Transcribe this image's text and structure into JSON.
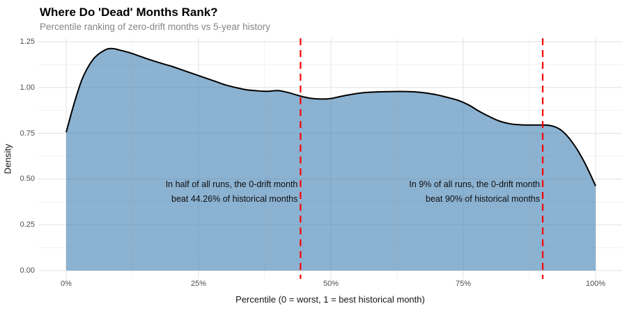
{
  "header": {
    "title": "Where Do 'Dead' Months Rank?",
    "subtitle": "Percentile ranking of zero-drift months vs 5-year history"
  },
  "chart_data": {
    "type": "area",
    "title": "Where Do 'Dead' Months Rank?",
    "subtitle": "Percentile ranking of zero-drift months vs 5-year history",
    "xlabel": "Percentile (0 = worst, 1 = best historical month)",
    "ylabel": "Density",
    "xlim": [
      0,
      100
    ],
    "ylim": [
      0,
      1.25
    ],
    "grid": "major+minor",
    "legend_position": "none",
    "x_ticks": [
      {
        "value": 0,
        "label": "0%"
      },
      {
        "value": 25,
        "label": "25%"
      },
      {
        "value": 50,
        "label": "50%"
      },
      {
        "value": 75,
        "label": "75%"
      },
      {
        "value": 100,
        "label": "100%"
      }
    ],
    "y_ticks": [
      {
        "value": 0.0,
        "label": "0.00"
      },
      {
        "value": 0.25,
        "label": "0.25"
      },
      {
        "value": 0.5,
        "label": "0.50"
      },
      {
        "value": 0.75,
        "label": "0.75"
      },
      {
        "value": 1.0,
        "label": "1.00"
      },
      {
        "value": 1.25,
        "label": "1.25"
      }
    ],
    "x_minor_ticks": [
      12.5,
      37.5,
      62.5,
      87.5
    ],
    "y_minor_ticks": [
      0.125,
      0.375,
      0.625,
      0.875,
      1.125
    ],
    "series": {
      "name": "density",
      "x": [
        0,
        1,
        2,
        3,
        4,
        5,
        6,
        7,
        8,
        9,
        10,
        12,
        14,
        16,
        18,
        20,
        22,
        24,
        26,
        28,
        30,
        32,
        34,
        36,
        38,
        40,
        42,
        44,
        46,
        48,
        50,
        52,
        54,
        56,
        58,
        60,
        62,
        64,
        66,
        68,
        70,
        72,
        74,
        76,
        78,
        80,
        82,
        84,
        86,
        88,
        90,
        91,
        92,
        93,
        94,
        95,
        96,
        97,
        98,
        99,
        100
      ],
      "density": [
        0.755,
        0.862,
        0.96,
        1.045,
        1.105,
        1.15,
        1.18,
        1.2,
        1.212,
        1.212,
        1.205,
        1.19,
        1.17,
        1.15,
        1.132,
        1.115,
        1.095,
        1.075,
        1.055,
        1.035,
        1.015,
        1.0,
        0.988,
        0.982,
        0.979,
        0.983,
        0.972,
        0.955,
        0.942,
        0.937,
        0.94,
        0.952,
        0.963,
        0.971,
        0.975,
        0.977,
        0.978,
        0.978,
        0.976,
        0.97,
        0.96,
        0.946,
        0.93,
        0.905,
        0.87,
        0.84,
        0.815,
        0.801,
        0.796,
        0.795,
        0.795,
        0.794,
        0.788,
        0.776,
        0.754,
        0.723,
        0.684,
        0.638,
        0.585,
        0.525,
        0.462
      ]
    },
    "vlines": [
      {
        "x": 44.26,
        "style": "dashed"
      },
      {
        "x": 90,
        "style": "dashed"
      }
    ],
    "annotations": [
      {
        "x": 44.26,
        "y": 0.43,
        "align": "right",
        "lines": [
          "In half of all runs, the 0-drift month",
          "beat 44.26% of historical months"
        ]
      },
      {
        "x": 90,
        "y": 0.43,
        "align": "right",
        "lines": [
          "In 9% of all runs, the 0-drift month",
          "beat 90% of historical months"
        ]
      }
    ],
    "colors": {
      "fill": "#4682B4",
      "fill_opacity": 0.62,
      "outline": "#000000",
      "vline": "#F80000",
      "grid_major": "#e5e5e5",
      "grid_minor": "#f1f1f1",
      "title": "#000000",
      "subtitle": "#848484",
      "tick_label": "#4d4d4d",
      "axis_title": "#141414",
      "annotation": "#0d0d0d"
    }
  }
}
